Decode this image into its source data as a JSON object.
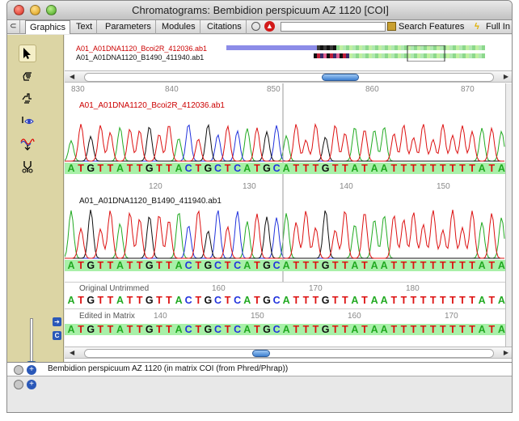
{
  "window": {
    "title": "Chromatograms: Bembidion perspicuum AZ 1120 [COI]"
  },
  "tabs": [
    {
      "label": "Graphics",
      "selected": true
    },
    {
      "label": "Text"
    },
    {
      "label": "Parameters"
    },
    {
      "label": "Modules"
    },
    {
      "label": "Citations"
    }
  ],
  "toolbar_right": {
    "search_label": "Search Features",
    "fullinfo_label": "Full In"
  },
  "tools": [
    {
      "name": "arrow-tool-icon",
      "selected": true
    },
    {
      "name": "hand-tool-icon"
    },
    {
      "name": "hand-point-tool-icon"
    },
    {
      "name": "eye-tool-icon"
    },
    {
      "name": "wave-tool-icon"
    },
    {
      "name": "scissors-tool-icon"
    }
  ],
  "overview": {
    "read1": "A01_A01DNA1120_Bcoi2R_412036.ab1",
    "read2": "A01_A01DNA1120_B1490_411940.ab1"
  },
  "top_ticks": [
    "830",
    "840",
    "850",
    "860",
    "870"
  ],
  "read1": {
    "name": "A01_A01DNA1120_Bcoi2R_412036.ab1",
    "sequence": "ATGTTATTGTTACTGCTCATGCATTTGTTATAATTTTTTTTTATA"
  },
  "read2_ticks": [
    "120",
    "130",
    "140",
    "150"
  ],
  "read2": {
    "name": "A01_A01DNA1120_B1490_411940.ab1",
    "sequence": "ATGTTATTGTTACTGCTCATGCATTTGTTATAATTTTTTTTTATA"
  },
  "original": {
    "label": "Original Untrimmed",
    "ticks": [
      "160",
      "170",
      "180"
    ],
    "sequence": "ATGTTATTGTTACTGCTCATGCATTTGTTATAATTTTTTTTTATA"
  },
  "edited": {
    "label": "Edited in Matrix",
    "ticks": [
      "140",
      "150",
      "160",
      "170"
    ],
    "sequence": "ATGTTATTGTTACTGCTCATGCATTTGTTATAATTTTTTTTTATA"
  },
  "status": {
    "text": "Bembidion perspicuum AZ 1120 (in matrix COI (from Phred/Phrap))"
  },
  "colors": {
    "A": "#22aa22",
    "C": "#2233dd",
    "G": "#111111",
    "T": "#dd1111",
    "read1_name": "#cc0000",
    "highlight": "#a8f0a8"
  }
}
